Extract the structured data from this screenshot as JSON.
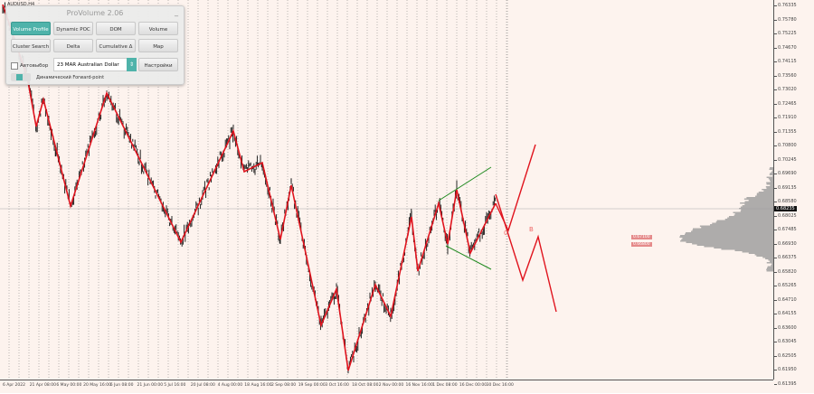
{
  "chart": {
    "symbol": "AUDUSD,H4",
    "current_price": "0.68235",
    "y_ticks": [
      "0.76335",
      "0.75780",
      "0.75225",
      "0.74670",
      "0.74115",
      "0.73560",
      "0.73020",
      "0.72465",
      "0.71910",
      "0.71355",
      "0.70800",
      "0.70245",
      "0.69690",
      "0.69135",
      "0.68580",
      "0.68025",
      "0.67485",
      "0.66930",
      "0.66375",
      "0.65820",
      "0.65265",
      "0.64710",
      "0.64155",
      "0.63600",
      "0.63045",
      "0.62505",
      "0.61950",
      "0.61395"
    ],
    "x_ticks": [
      "6 Apr 2022",
      "21 Apr 08:00",
      "6 May 00:00",
      "20 May 16:00",
      "6 Jun 08:00",
      "21 Jun 00:00",
      "5 Jul 16:00",
      "20 Jul 08:00",
      "4 Aug 00:00",
      "18 Aug 16:00",
      "2 Sep 08:00",
      "19 Sep 00:00",
      "3 Oct 16:00",
      "18 Oct 08:00",
      "2 Nov 00:00",
      "16 Nov 16:00",
      "1 Dec 08:00",
      "16 Dec 00:00",
      "30 Dec 16:00"
    ],
    "levels": [
      "0.67100",
      "0.66800"
    ],
    "wave_labels": [
      "0",
      "B"
    ],
    "colors": {
      "zigzag": "#e0141e",
      "triangle": "#1f8a1f",
      "candles": "#111111",
      "profile": "#9a9a9a",
      "background": "#fdf3ee"
    }
  },
  "panel": {
    "title": "ProVolume 2.06",
    "minimize": "_",
    "buttons": [
      "Volume Profile",
      "Dynamic POC",
      "DOM",
      "Volume",
      "Cluster Search",
      "Delta",
      "Cumulative Δ",
      "Map"
    ],
    "active_button": "Volume Profile",
    "auto_label": "Автовыбор",
    "auto_checked": true,
    "instrument": "23 MAR Australian Dollar",
    "instrument_arrow": "⇕",
    "settings_label": "Настройки",
    "forward_label": "Динамический Forward-point"
  }
}
